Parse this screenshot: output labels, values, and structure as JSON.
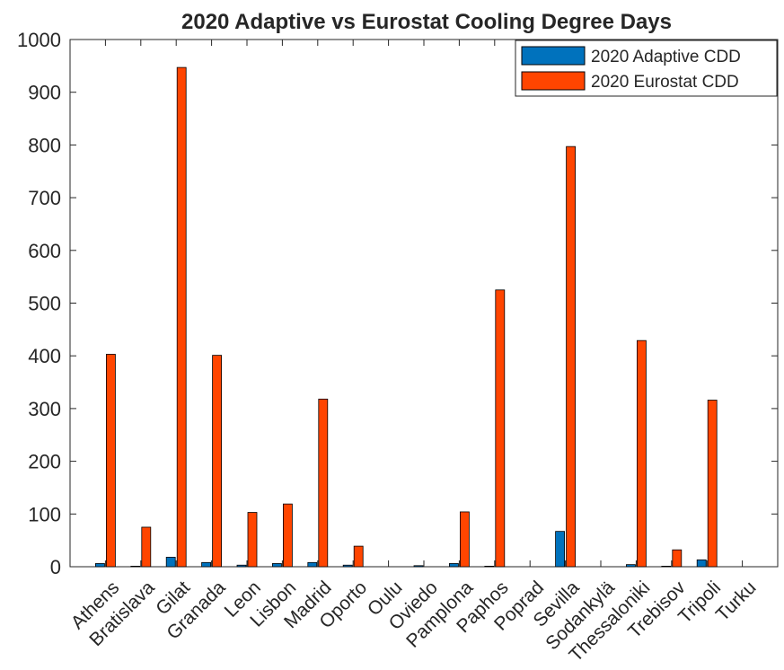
{
  "chart_data": {
    "type": "bar",
    "title": "2020 Adaptive vs Eurostat Cooling Degree Days",
    "xlabel": "",
    "ylabel": "",
    "ylim": [
      0,
      1000
    ],
    "yticks": [
      0,
      100,
      200,
      300,
      400,
      500,
      600,
      700,
      800,
      900,
      1000
    ],
    "grid": false,
    "legend_position": "top-right",
    "categories": [
      "Athens",
      "Bratislava",
      "Gilat",
      "Granada",
      "Leon",
      "Lisbon",
      "Madrid",
      "Oporto",
      "Oulu",
      "Oviedo",
      "Pamplona",
      "Paphos",
      "Poprad",
      "Sevilla",
      "Sodankylä",
      "Thessaloniki",
      "Trebisov",
      "Tripoli",
      "Turku"
    ],
    "series": [
      {
        "name": "2020 Adaptive CDD",
        "color": "#0072BD",
        "values": [
          6,
          1,
          18,
          8,
          3,
          6,
          8,
          3,
          0,
          2,
          6,
          1,
          0,
          67,
          0,
          4,
          1,
          13,
          0
        ]
      },
      {
        "name": "2020 Eurostat CDD",
        "color": "#FF4500",
        "values": [
          403,
          75,
          947,
          401,
          103,
          119,
          318,
          39,
          0,
          0,
          104,
          525,
          0,
          797,
          0,
          429,
          32,
          316,
          0
        ]
      }
    ]
  }
}
